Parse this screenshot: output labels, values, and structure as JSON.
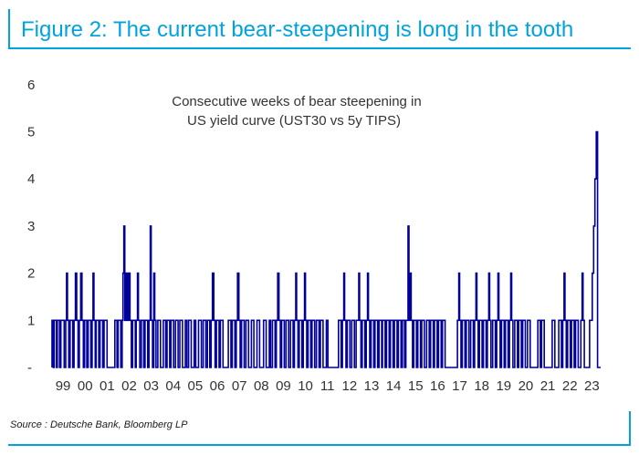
{
  "figure_title": "Figure 2: The current bear-steepening is long in the tooth",
  "source": "Source : Deutsche Bank, Bloomberg LP",
  "chart_data": {
    "type": "bar",
    "title": "Consecutive weeks of bear steepening in US yield curve (UST30 vs 5y TIPS)",
    "title_lines": [
      "Consecutive weeks of bear steepening in",
      "US yield curve (UST30 vs 5y TIPS)"
    ],
    "xlabel": "",
    "ylabel": "",
    "ylim": [
      0,
      6
    ],
    "yticks": [
      "-",
      "1",
      "2",
      "3",
      "4",
      "5",
      "6"
    ],
    "x_tick_labels": [
      "99",
      "00",
      "01",
      "02",
      "03",
      "04",
      "05",
      "06",
      "07",
      "08",
      "09",
      "10",
      "11",
      "12",
      "13",
      "14",
      "15",
      "16",
      "17",
      "18",
      "19",
      "20",
      "21",
      "22",
      "23"
    ],
    "x_start_year": 1999,
    "x_end_year": 2023.9,
    "color": "#000099",
    "grid": false,
    "legend": "none",
    "week_date_values": [
      [
        1999.0,
        1
      ],
      [
        1999.06,
        0
      ],
      [
        1999.1,
        1
      ],
      [
        1999.14,
        1
      ],
      [
        1999.2,
        0
      ],
      [
        1999.24,
        1
      ],
      [
        1999.28,
        1
      ],
      [
        1999.34,
        0
      ],
      [
        1999.4,
        1
      ],
      [
        1999.48,
        1
      ],
      [
        1999.55,
        0
      ],
      [
        1999.62,
        1
      ],
      [
        1999.66,
        2
      ],
      [
        1999.7,
        1
      ],
      [
        1999.76,
        0
      ],
      [
        1999.82,
        1
      ],
      [
        1999.88,
        1
      ],
      [
        1999.94,
        0
      ],
      [
        2000.0,
        1
      ],
      [
        2000.06,
        2
      ],
      [
        2000.12,
        1
      ],
      [
        2000.18,
        0
      ],
      [
        2000.24,
        1
      ],
      [
        2000.3,
        2
      ],
      [
        2000.36,
        1
      ],
      [
        2000.42,
        0
      ],
      [
        2000.48,
        1
      ],
      [
        2000.52,
        1
      ],
      [
        2000.58,
        0
      ],
      [
        2000.64,
        1
      ],
      [
        2000.7,
        1
      ],
      [
        2000.76,
        0
      ],
      [
        2000.82,
        1
      ],
      [
        2000.86,
        2
      ],
      [
        2000.9,
        1
      ],
      [
        2000.96,
        0
      ],
      [
        2001.0,
        1
      ],
      [
        2001.06,
        1
      ],
      [
        2001.12,
        0
      ],
      [
        2001.18,
        1
      ],
      [
        2001.24,
        1
      ],
      [
        2001.3,
        0
      ],
      [
        2001.36,
        1
      ],
      [
        2001.42,
        1
      ],
      [
        2001.5,
        0
      ],
      [
        2001.85,
        1
      ],
      [
        2001.9,
        1
      ],
      [
        2001.95,
        0
      ],
      [
        2002.0,
        1
      ],
      [
        2002.06,
        1
      ],
      [
        2002.12,
        0
      ],
      [
        2002.18,
        1
      ],
      [
        2002.22,
        2
      ],
      [
        2002.26,
        3
      ],
      [
        2002.3,
        1
      ],
      [
        2002.36,
        2
      ],
      [
        2002.42,
        1
      ],
      [
        2002.48,
        2
      ],
      [
        2002.54,
        1
      ],
      [
        2002.6,
        0
      ],
      [
        2002.66,
        1
      ],
      [
        2002.72,
        1
      ],
      [
        2002.78,
        0
      ],
      [
        2002.82,
        1
      ],
      [
        2002.88,
        2
      ],
      [
        2002.92,
        1
      ],
      [
        2002.98,
        0
      ],
      [
        2003.05,
        1
      ],
      [
        2003.1,
        1
      ],
      [
        2003.16,
        0
      ],
      [
        2003.22,
        1
      ],
      [
        2003.28,
        1
      ],
      [
        2003.34,
        0
      ],
      [
        2003.4,
        1
      ],
      [
        2003.46,
        3
      ],
      [
        2003.5,
        1
      ],
      [
        2003.56,
        0
      ],
      [
        2003.62,
        2
      ],
      [
        2003.66,
        1
      ],
      [
        2003.72,
        0
      ],
      [
        2003.8,
        1
      ],
      [
        2003.86,
        1
      ],
      [
        2003.92,
        0
      ],
      [
        2004.05,
        1
      ],
      [
        2004.1,
        1
      ],
      [
        2004.16,
        0
      ],
      [
        2004.22,
        1
      ],
      [
        2004.28,
        1
      ],
      [
        2004.34,
        0
      ],
      [
        2004.4,
        1
      ],
      [
        2004.46,
        1
      ],
      [
        2004.52,
        0
      ],
      [
        2004.6,
        1
      ],
      [
        2004.66,
        1
      ],
      [
        2004.72,
        0
      ],
      [
        2004.8,
        1
      ],
      [
        2004.86,
        1
      ],
      [
        2004.92,
        0
      ],
      [
        2005.05,
        1
      ],
      [
        2005.12,
        0
      ],
      [
        2005.2,
        1
      ],
      [
        2005.26,
        1
      ],
      [
        2005.32,
        0
      ],
      [
        2005.45,
        1
      ],
      [
        2005.52,
        0
      ],
      [
        2005.65,
        1
      ],
      [
        2005.72,
        1
      ],
      [
        2005.78,
        0
      ],
      [
        2005.86,
        1
      ],
      [
        2005.92,
        1
      ],
      [
        2005.98,
        0
      ],
      [
        2006.05,
        1
      ],
      [
        2006.1,
        1
      ],
      [
        2006.16,
        0
      ],
      [
        2006.22,
        1
      ],
      [
        2006.28,
        2
      ],
      [
        2006.34,
        1
      ],
      [
        2006.4,
        0
      ],
      [
        2006.46,
        1
      ],
      [
        2006.52,
        1
      ],
      [
        2006.58,
        0
      ],
      [
        2006.64,
        1
      ],
      [
        2006.7,
        1
      ],
      [
        2006.76,
        0
      ],
      [
        2007.0,
        1
      ],
      [
        2007.06,
        1
      ],
      [
        2007.12,
        0
      ],
      [
        2007.18,
        1
      ],
      [
        2007.24,
        1
      ],
      [
        2007.3,
        0
      ],
      [
        2007.36,
        1
      ],
      [
        2007.42,
        2
      ],
      [
        2007.48,
        1
      ],
      [
        2007.54,
        0
      ],
      [
        2007.6,
        1
      ],
      [
        2007.66,
        1
      ],
      [
        2007.72,
        0
      ],
      [
        2007.8,
        1
      ],
      [
        2007.86,
        1
      ],
      [
        2007.92,
        0
      ],
      [
        2008.05,
        1
      ],
      [
        2008.1,
        1
      ],
      [
        2008.16,
        0
      ],
      [
        2008.3,
        1
      ],
      [
        2008.36,
        1
      ],
      [
        2008.42,
        0
      ],
      [
        2008.6,
        1
      ],
      [
        2008.66,
        1
      ],
      [
        2008.72,
        0
      ],
      [
        2008.86,
        1
      ],
      [
        2008.92,
        0
      ],
      [
        2009.0,
        1
      ],
      [
        2009.06,
        1
      ],
      [
        2009.12,
        0
      ],
      [
        2009.18,
        1
      ],
      [
        2009.24,
        2
      ],
      [
        2009.3,
        1
      ],
      [
        2009.36,
        0
      ],
      [
        2009.42,
        1
      ],
      [
        2009.48,
        1
      ],
      [
        2009.54,
        0
      ],
      [
        2009.62,
        1
      ],
      [
        2009.68,
        1
      ],
      [
        2009.74,
        0
      ],
      [
        2009.82,
        1
      ],
      [
        2009.88,
        1
      ],
      [
        2009.94,
        0
      ],
      [
        2010.0,
        1
      ],
      [
        2010.06,
        2
      ],
      [
        2010.1,
        1
      ],
      [
        2010.16,
        0
      ],
      [
        2010.22,
        1
      ],
      [
        2010.28,
        1
      ],
      [
        2010.34,
        0
      ],
      [
        2010.4,
        1
      ],
      [
        2010.46,
        2
      ],
      [
        2010.5,
        1
      ],
      [
        2010.56,
        0
      ],
      [
        2010.62,
        1
      ],
      [
        2010.68,
        1
      ],
      [
        2010.74,
        0
      ],
      [
        2010.8,
        1
      ],
      [
        2010.86,
        1
      ],
      [
        2010.92,
        0
      ],
      [
        2011.0,
        1
      ],
      [
        2011.06,
        1
      ],
      [
        2011.12,
        0
      ],
      [
        2011.18,
        1
      ],
      [
        2011.24,
        1
      ],
      [
        2011.3,
        0
      ],
      [
        2011.45,
        1
      ],
      [
        2011.52,
        0
      ],
      [
        2012.0,
        1
      ],
      [
        2012.06,
        1
      ],
      [
        2012.12,
        0
      ],
      [
        2012.18,
        1
      ],
      [
        2012.24,
        2
      ],
      [
        2012.28,
        1
      ],
      [
        2012.34,
        0
      ],
      [
        2012.4,
        1
      ],
      [
        2012.46,
        1
      ],
      [
        2012.52,
        0
      ],
      [
        2012.6,
        1
      ],
      [
        2012.66,
        1
      ],
      [
        2012.72,
        0
      ],
      [
        2012.8,
        1
      ],
      [
        2012.86,
        1
      ],
      [
        2012.92,
        2
      ],
      [
        2012.96,
        1
      ],
      [
        2013.02,
        0
      ],
      [
        2013.08,
        1
      ],
      [
        2013.14,
        1
      ],
      [
        2013.2,
        0
      ],
      [
        2013.26,
        1
      ],
      [
        2013.32,
        2
      ],
      [
        2013.36,
        1
      ],
      [
        2013.42,
        0
      ],
      [
        2013.48,
        1
      ],
      [
        2013.54,
        1
      ],
      [
        2013.6,
        0
      ],
      [
        2013.66,
        1
      ],
      [
        2013.72,
        1
      ],
      [
        2013.78,
        0
      ],
      [
        2013.84,
        1
      ],
      [
        2013.9,
        1
      ],
      [
        2013.96,
        0
      ],
      [
        2014.0,
        1
      ],
      [
        2014.06,
        1
      ],
      [
        2014.12,
        0
      ],
      [
        2014.18,
        1
      ],
      [
        2014.24,
        1
      ],
      [
        2014.3,
        0
      ],
      [
        2014.36,
        1
      ],
      [
        2014.42,
        1
      ],
      [
        2014.48,
        0
      ],
      [
        2014.54,
        1
      ],
      [
        2014.6,
        1
      ],
      [
        2014.66,
        0
      ],
      [
        2014.72,
        1
      ],
      [
        2014.78,
        1
      ],
      [
        2014.84,
        0
      ],
      [
        2014.9,
        1
      ],
      [
        2014.96,
        1
      ],
      [
        2015.0,
        0
      ],
      [
        2015.06,
        1
      ],
      [
        2015.12,
        1
      ],
      [
        2015.16,
        3
      ],
      [
        2015.2,
        1
      ],
      [
        2015.26,
        2
      ],
      [
        2015.3,
        1
      ],
      [
        2015.36,
        0
      ],
      [
        2015.42,
        1
      ],
      [
        2015.48,
        1
      ],
      [
        2015.54,
        0
      ],
      [
        2015.6,
        1
      ],
      [
        2015.66,
        1
      ],
      [
        2015.72,
        0
      ],
      [
        2015.78,
        1
      ],
      [
        2015.84,
        1
      ],
      [
        2015.9,
        0
      ],
      [
        2016.0,
        1
      ],
      [
        2016.06,
        1
      ],
      [
        2016.12,
        0
      ],
      [
        2016.18,
        1
      ],
      [
        2016.24,
        1
      ],
      [
        2016.3,
        0
      ],
      [
        2016.36,
        1
      ],
      [
        2016.42,
        1
      ],
      [
        2016.48,
        0
      ],
      [
        2016.54,
        1
      ],
      [
        2016.6,
        1
      ],
      [
        2016.66,
        0
      ],
      [
        2016.72,
        1
      ],
      [
        2016.78,
        1
      ],
      [
        2016.84,
        0
      ],
      [
        2017.4,
        1
      ],
      [
        2017.46,
        2
      ],
      [
        2017.5,
        1
      ],
      [
        2017.56,
        0
      ],
      [
        2017.62,
        1
      ],
      [
        2017.68,
        1
      ],
      [
        2017.74,
        0
      ],
      [
        2017.8,
        1
      ],
      [
        2017.86,
        1
      ],
      [
        2017.92,
        0
      ],
      [
        2018.0,
        1
      ],
      [
        2018.06,
        1
      ],
      [
        2018.12,
        0
      ],
      [
        2018.18,
        1
      ],
      [
        2018.24,
        2
      ],
      [
        2018.28,
        1
      ],
      [
        2018.34,
        0
      ],
      [
        2018.4,
        1
      ],
      [
        2018.46,
        1
      ],
      [
        2018.52,
        0
      ],
      [
        2018.58,
        1
      ],
      [
        2018.64,
        1
      ],
      [
        2018.7,
        0
      ],
      [
        2018.76,
        1
      ],
      [
        2018.82,
        2
      ],
      [
        2018.86,
        1
      ],
      [
        2018.92,
        0
      ],
      [
        2019.0,
        1
      ],
      [
        2019.06,
        1
      ],
      [
        2019.12,
        0
      ],
      [
        2019.18,
        1
      ],
      [
        2019.24,
        2
      ],
      [
        2019.28,
        1
      ],
      [
        2019.34,
        0
      ],
      [
        2019.4,
        1
      ],
      [
        2019.46,
        1
      ],
      [
        2019.52,
        0
      ],
      [
        2019.58,
        1
      ],
      [
        2019.64,
        1
      ],
      [
        2019.7,
        0
      ],
      [
        2019.76,
        1
      ],
      [
        2019.82,
        2
      ],
      [
        2019.86,
        1
      ],
      [
        2019.92,
        0
      ],
      [
        2020.0,
        1
      ],
      [
        2020.06,
        1
      ],
      [
        2020.12,
        0
      ],
      [
        2020.18,
        1
      ],
      [
        2020.24,
        1
      ],
      [
        2020.3,
        0
      ],
      [
        2020.36,
        1
      ],
      [
        2020.42,
        1
      ],
      [
        2020.48,
        0
      ],
      [
        2020.58,
        1
      ],
      [
        2020.64,
        1
      ],
      [
        2020.7,
        0
      ],
      [
        2021.05,
        1
      ],
      [
        2021.1,
        1
      ],
      [
        2021.16,
        0
      ],
      [
        2021.22,
        1
      ],
      [
        2021.28,
        1
      ],
      [
        2021.34,
        0
      ],
      [
        2021.7,
        1
      ],
      [
        2021.76,
        1
      ],
      [
        2021.82,
        0
      ],
      [
        2022.0,
        1
      ],
      [
        2022.06,
        1
      ],
      [
        2022.12,
        0
      ],
      [
        2022.18,
        1
      ],
      [
        2022.24,
        2
      ],
      [
        2022.28,
        1
      ],
      [
        2022.34,
        0
      ],
      [
        2022.4,
        1
      ],
      [
        2022.46,
        1
      ],
      [
        2022.52,
        0
      ],
      [
        2022.58,
        1
      ],
      [
        2022.64,
        1
      ],
      [
        2022.7,
        0
      ],
      [
        2022.76,
        1
      ],
      [
        2022.82,
        1
      ],
      [
        2022.88,
        0
      ],
      [
        2023.0,
        1
      ],
      [
        2023.06,
        2
      ],
      [
        2023.1,
        1
      ],
      [
        2023.16,
        0
      ],
      [
        2023.4,
        1
      ],
      [
        2023.46,
        1
      ],
      [
        2023.52,
        2
      ],
      [
        2023.58,
        3
      ],
      [
        2023.64,
        4
      ],
      [
        2023.7,
        5
      ],
      [
        2023.76,
        0
      ]
    ]
  }
}
